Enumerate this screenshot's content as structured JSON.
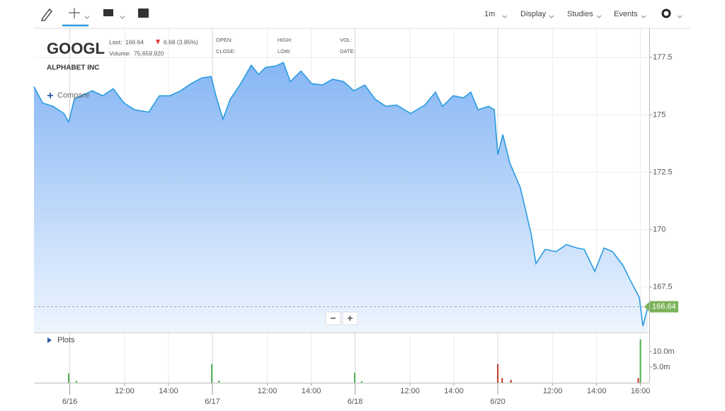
{
  "toolbar": {
    "interval": "1m",
    "menus": [
      "Display",
      "Studies",
      "Events"
    ]
  },
  "header": {
    "symbol": "GOOGL",
    "company": "ALPHABET INC",
    "last_label": "Last:",
    "last": "166.64",
    "change": "6.68 (3.85%)",
    "volume_label": "Volume:",
    "volume": "75,659,920",
    "fields": [
      "OPEN:",
      "CLOSE:",
      "HIGH:",
      "LOW:",
      "VOL:",
      "DATE:"
    ]
  },
  "compare": "Compare",
  "plots": "Plots",
  "zoom": [
    "−",
    "+"
  ],
  "chart_data": [
    {
      "type": "area",
      "color": "#2a9be0",
      "last_value": 166.64,
      "x": [
        -1.63,
        -1.24,
        -0.76,
        -0.27,
        -0.05,
        0.21,
        0.53,
        1.02,
        1.5,
        1.98,
        2.47,
        2.95,
        3.6,
        4.08,
        4.56,
        5.05,
        5.53,
        6.02,
        6.44,
        6.66,
        6.98,
        7.31,
        7.79,
        8.27,
        8.6,
        8.92,
        9.4,
        9.73,
        10.05,
        10.53,
        11.02,
        11.5,
        11.98,
        12.47,
        12.95,
        13.44,
        13.92,
        14.4,
        14.89,
        15.53,
        16.18,
        16.66,
        16.98,
        17.47,
        17.95,
        18.27,
        18.6,
        19.08,
        19.34,
        19.5,
        19.73,
        20.05,
        20.53,
        21.02,
        21.24,
        21.66,
        22.15,
        22.63,
        23.11,
        23.44,
        23.92,
        24.34,
        24.73,
        25.21,
        25.53,
        25.95,
        26.11,
        26.34
      ],
      "values": [
        176.23,
        175.52,
        175.37,
        175.06,
        174.69,
        175.68,
        175.83,
        176.05,
        175.83,
        176.14,
        175.52,
        175.22,
        175.12,
        175.83,
        175.83,
        176.05,
        176.36,
        176.61,
        176.67,
        175.83,
        174.81,
        175.68,
        176.36,
        177.16,
        176.76,
        177.07,
        177.13,
        177.28,
        176.45,
        176.91,
        176.36,
        176.3,
        176.55,
        176.45,
        176.05,
        176.3,
        175.68,
        175.37,
        175.43,
        175.06,
        175.43,
        175.99,
        175.37,
        175.83,
        175.74,
        175.99,
        175.22,
        175.37,
        175.22,
        173.27,
        174.14,
        172.9,
        171.82,
        169.81,
        168.52,
        169.14,
        169.04,
        169.35,
        169.2,
        169.14,
        168.18,
        169.2,
        169.04,
        168.43,
        167.81,
        167.04,
        165.8,
        166.64
      ],
      "xlim": [
        -1.63,
        26.4
      ],
      "ylim": [
        165.52,
        178.77
      ],
      "yticks": [
        167.5,
        170,
        172.5,
        175,
        177.5
      ],
      "xticks": [
        {
          "value": 2.5,
          "label": "12:00"
        },
        {
          "value": 4.5,
          "label": "14:00"
        },
        {
          "value": 9,
          "label": "12:00"
        },
        {
          "value": 11,
          "label": "14:00"
        },
        {
          "value": 15.5,
          "label": "12:00"
        },
        {
          "value": 17.5,
          "label": "14:00"
        },
        {
          "value": 22,
          "label": "12:00"
        },
        {
          "value": 24,
          "label": "14:00"
        },
        {
          "value": 26,
          "label": "16:00"
        }
      ],
      "day_ticks": [
        {
          "value": 0,
          "label": "6/16"
        },
        {
          "value": 6.5,
          "label": "6/17"
        },
        {
          "value": 13,
          "label": "6/18"
        },
        {
          "value": 19.5,
          "label": "6/20"
        }
      ],
      "grid": true
    },
    {
      "type": "volume",
      "x": [
        -0.05,
        0.3,
        6.47,
        6.8,
        12.98,
        13.3,
        19.5,
        19.7,
        20.1,
        25.9,
        26.0
      ],
      "values": [
        3000000,
        600000,
        6000000,
        700000,
        3200000,
        500000,
        6000000,
        1500000,
        900000,
        1500000,
        13900000
      ],
      "colors": [
        "#4caf50",
        "#4caf50",
        "#4caf50",
        "#4caf50",
        "#4caf50",
        "#4caf50",
        "#c0392b",
        "#c0392b",
        "#c0392b",
        "#c0392b",
        "#4caf50"
      ],
      "xlim": [
        -1.63,
        26.4
      ],
      "ylim": [
        0,
        15900000
      ],
      "yticks": [
        {
          "value": 5000000,
          "label": "5.0m"
        },
        {
          "value": 10000000,
          "label": "10.0m"
        }
      ]
    }
  ]
}
